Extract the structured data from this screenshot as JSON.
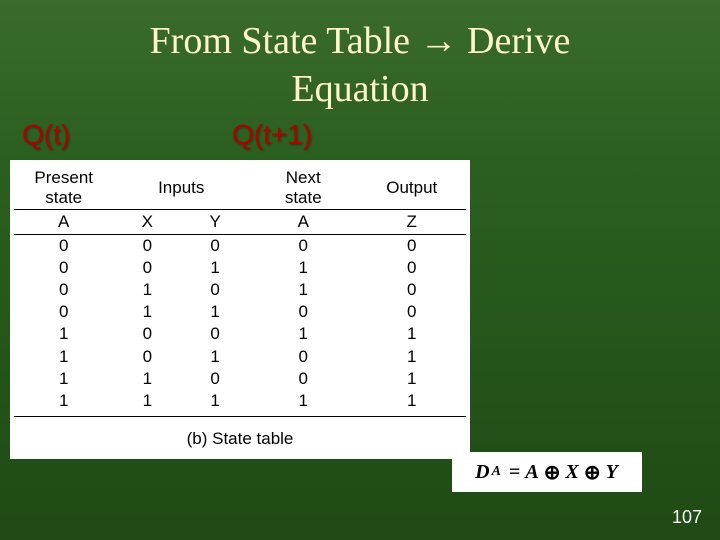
{
  "title_line1": "From State Table → Derive",
  "title_line2": "Equation",
  "labels": {
    "qt": "Q(t)",
    "qt1": "Q(t+1)"
  },
  "state_table": {
    "headers": {
      "present": "Present\nstate",
      "inputs": "Inputs",
      "next": "Next\nstate",
      "output": "Output"
    },
    "sub_headers": {
      "present": "A",
      "input_x": "X",
      "input_y": "Y",
      "next": "A",
      "output": "Z"
    },
    "rows": [
      [
        "0",
        "0",
        "0",
        "0",
        "0"
      ],
      [
        "0",
        "0",
        "1",
        "1",
        "0"
      ],
      [
        "0",
        "1",
        "0",
        "1",
        "0"
      ],
      [
        "0",
        "1",
        "1",
        "0",
        "0"
      ],
      [
        "1",
        "0",
        "0",
        "1",
        "1"
      ],
      [
        "1",
        "0",
        "1",
        "0",
        "1"
      ],
      [
        "1",
        "1",
        "0",
        "0",
        "1"
      ],
      [
        "1",
        "1",
        "1",
        "1",
        "1"
      ]
    ],
    "caption": "(b) State table"
  },
  "equation": {
    "lhs_var": "D",
    "lhs_sub": "A",
    "rhs_a": "A",
    "op": "⊕",
    "rhs_b": "X",
    "rhs_c": "Y",
    "eq": "="
  },
  "slide_number": "107",
  "colors": {
    "background_top": "#3a6b2a",
    "background_bottom": "#1f4a15",
    "title_color": "#fff6c8",
    "label_color": "#b00000",
    "panel_bg": "#ffffff",
    "text_color": "#000000"
  }
}
